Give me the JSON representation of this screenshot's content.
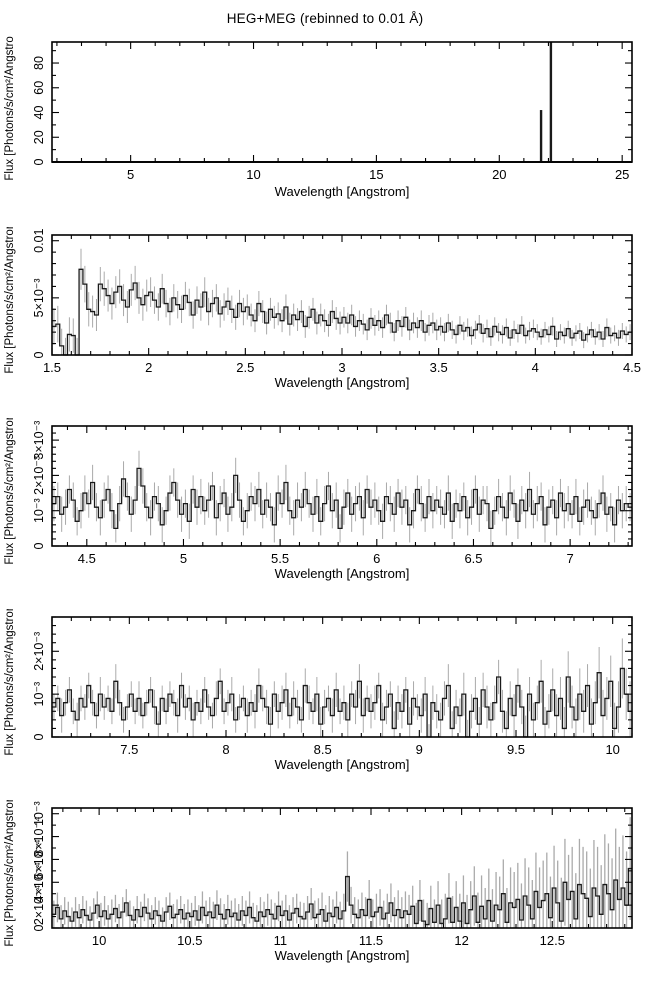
{
  "title": "HEG+MEG (rebinned to 0.01 Å)",
  "colors": {
    "background": "#ffffff",
    "frame": "#000000",
    "histogram": "#1a1a1a",
    "error_bars": "#aaaaaa",
    "text": "#000000"
  },
  "chart_data": [
    {
      "type": "histogram",
      "panel": "overview",
      "xlabel": "Wavelength [Angstrom]",
      "ylabel": "Flux [Photons/s/cm²/Angstrom]",
      "xlim": [
        1.8,
        25.4
      ],
      "ylim": [
        0,
        97
      ],
      "xticks": {
        "major": [
          5,
          10,
          15,
          20,
          25
        ],
        "labels": [
          "5",
          "10",
          "15",
          "20",
          "25"
        ],
        "minor_step": 1
      },
      "yticks": {
        "major": [
          0,
          20,
          40,
          60,
          80
        ],
        "labels": [
          "0",
          "20",
          "40",
          "60",
          "80"
        ],
        "minor_step": 10
      },
      "baseline_value": 0,
      "spikes": [
        {
          "x": 21.7,
          "y": 42
        },
        {
          "x": 22.1,
          "y": 97
        }
      ]
    },
    {
      "type": "histogram",
      "panel": "zoom-1",
      "xlabel": "Wavelength [Angstrom]",
      "ylabel": "Flux [Photons/s/cm²/Angstrom]",
      "xlim": [
        1.5,
        4.5
      ],
      "ylim": [
        0,
        0.0105
      ],
      "xticks": {
        "major": [
          1.5,
          2,
          2.5,
          3,
          3.5,
          4,
          4.5
        ],
        "labels": [
          "1.5",
          "2",
          "2.5",
          "3",
          "3.5",
          "4",
          "4.5"
        ],
        "minor_step": 0.1
      },
      "yticks": {
        "major": [
          0,
          0.005,
          0.01
        ],
        "labels": [
          "0",
          "5×10⁻³",
          "0.01"
        ],
        "minor_step": 0.001
      },
      "y_unit": 0.0001,
      "x0": 1.5,
      "dx": 0.02,
      "values": [
        25,
        27,
        8,
        0,
        18,
        17,
        0,
        75,
        62,
        40,
        38,
        35,
        62,
        58,
        52,
        45,
        55,
        60,
        48,
        42,
        57,
        63,
        50,
        44,
        52,
        55,
        48,
        42,
        58,
        45,
        38,
        50,
        44,
        40,
        52,
        46,
        35,
        48,
        42,
        55,
        38,
        45,
        50,
        36,
        42,
        47,
        40,
        33,
        45,
        38,
        42,
        35,
        30,
        45,
        38,
        28,
        40,
        33,
        36,
        30,
        42,
        27,
        35,
        31,
        38,
        25,
        33,
        40,
        28,
        35,
        30,
        26,
        38,
        32,
        28,
        33,
        28,
        35,
        25,
        30,
        27,
        22,
        32,
        26,
        30,
        24,
        35,
        28,
        20,
        30,
        25,
        33,
        22,
        28,
        24,
        30,
        20,
        26,
        28,
        22,
        25,
        20,
        28,
        22,
        18,
        26,
        21,
        24,
        17,
        22,
        27,
        19,
        23,
        16,
        25,
        20,
        18,
        24,
        15,
        22,
        19,
        26,
        17,
        21,
        23,
        20,
        16,
        22,
        18,
        25,
        14,
        20,
        17,
        23,
        15,
        19,
        21,
        13,
        18,
        22,
        16,
        20,
        14,
        24,
        17,
        19,
        15,
        21,
        18,
        20
      ],
      "errors": [
        16,
        16,
        15,
        15,
        15,
        15,
        15,
        18,
        16,
        15,
        14,
        14,
        15,
        15,
        14,
        14,
        14,
        15,
        14,
        14,
        14,
        15,
        14,
        14,
        14,
        13,
        12,
        12,
        13,
        12,
        12,
        12,
        12,
        12,
        12,
        12,
        12,
        12,
        12,
        13,
        12,
        12,
        12,
        12,
        12,
        12,
        12,
        11,
        12,
        12,
        11,
        10,
        10,
        11,
        10,
        10,
        10,
        10,
        10,
        10,
        11,
        10,
        10,
        10,
        10,
        10,
        10,
        10,
        10,
        10,
        10,
        10,
        10,
        10,
        10,
        9,
        9,
        9,
        9,
        9,
        9,
        9,
        9,
        9,
        9,
        9,
        9,
        9,
        8,
        9,
        9,
        9,
        9,
        9,
        9,
        9,
        8,
        9,
        9,
        9,
        8,
        8,
        8,
        8,
        8,
        8,
        8,
        8,
        8,
        8,
        8,
        8,
        8,
        8,
        8,
        8,
        8,
        8,
        7,
        8,
        8,
        8,
        7,
        8,
        8,
        7,
        7,
        7,
        7,
        8,
        7,
        7,
        7,
        7,
        7,
        7,
        7,
        7,
        7,
        7,
        7,
        7,
        7,
        8,
        7,
        7,
        7,
        7,
        7,
        7
      ]
    },
    {
      "type": "histogram",
      "panel": "zoom-2",
      "xlabel": "Wavelength [Angstrom]",
      "ylabel": "Flux [Photons/s/cm²/Angstrom]",
      "xlim": [
        4.32,
        7.32
      ],
      "ylim": [
        0,
        0.0034
      ],
      "xticks": {
        "major": [
          4.5,
          5,
          5.5,
          6,
          6.5,
          7
        ],
        "labels": [
          "4.5",
          "5",
          "5.5",
          "6",
          "6.5",
          "7"
        ],
        "minor_step": 0.1
      },
      "yticks": {
        "major": [
          0,
          0.001,
          0.002,
          0.003
        ],
        "labels": [
          "0",
          "10⁻³",
          "2×10⁻³",
          "3×10⁻³"
        ],
        "minor_step": 0.0002
      },
      "y_unit": 0.0001,
      "x0": 4.32,
      "dx": 0.02,
      "values": [
        12,
        14,
        9,
        11,
        16,
        13,
        7,
        10,
        15,
        12,
        18,
        11,
        8,
        13,
        16,
        10,
        5,
        12,
        19,
        14,
        9,
        13,
        22,
        17,
        11,
        8,
        14,
        12,
        6,
        10,
        15,
        18,
        13,
        9,
        12,
        7,
        16,
        11,
        14,
        10,
        13,
        17,
        8,
        12,
        15,
        9,
        11,
        20,
        13,
        7,
        10,
        14,
        12,
        16,
        9,
        13,
        11,
        6,
        15,
        12,
        18,
        10,
        8,
        13,
        11,
        16,
        12,
        9,
        14,
        7,
        12,
        17,
        10,
        13,
        5,
        11,
        15,
        9,
        12,
        14,
        8,
        16,
        11,
        13,
        10,
        7,
        14,
        12,
        9,
        15,
        11,
        13,
        6,
        10,
        16,
        12,
        8,
        14,
        10,
        13,
        11,
        9,
        15,
        7,
        12,
        10,
        14,
        8,
        11,
        16,
        9,
        13,
        12,
        5,
        10,
        14,
        11,
        8,
        15,
        12,
        7,
        13,
        10,
        16,
        9,
        12,
        14,
        6,
        11,
        13,
        8,
        15,
        10,
        12,
        9,
        14,
        7,
        11,
        13,
        10,
        8,
        12,
        15,
        9,
        11,
        6,
        13,
        10,
        12,
        11
      ],
      "errors": [
        5,
        4,
        5,
        5,
        4,
        5,
        4,
        5,
        5,
        4,
        5,
        4,
        5,
        5,
        4,
        5,
        4,
        5,
        5,
        4,
        5,
        4,
        5,
        5,
        4,
        5,
        4,
        5,
        5,
        4,
        5,
        4,
        5,
        5,
        4,
        5,
        4,
        5,
        5,
        4,
        5,
        4,
        5,
        5,
        4,
        5,
        4,
        5,
        5,
        4,
        5,
        4,
        5,
        5,
        4,
        5,
        4,
        5,
        5,
        4,
        5,
        4,
        5,
        5,
        4,
        5,
        4,
        5,
        5,
        4,
        5,
        4,
        5,
        5,
        4,
        5,
        4,
        5,
        5,
        4,
        5,
        4,
        5,
        5,
        4,
        5,
        4,
        5,
        5,
        4,
        5,
        4,
        5,
        5,
        4,
        5,
        4,
        5,
        5,
        4,
        5,
        4,
        5,
        5,
        4,
        5,
        4,
        5,
        5,
        4,
        5,
        4,
        5,
        5,
        4,
        5,
        4,
        5,
        5,
        4,
        5,
        4,
        5,
        5,
        4,
        5,
        4,
        5,
        5,
        4,
        5,
        4,
        5,
        5,
        4,
        5,
        4,
        5,
        5,
        4,
        5,
        4,
        5,
        5,
        4,
        5,
        4,
        5,
        5,
        4
      ]
    },
    {
      "type": "histogram",
      "panel": "zoom-3",
      "xlabel": "Wavelength [Angstrom]",
      "ylabel": "Flux [Photons/s/cm²/Angstrom]",
      "xlim": [
        7.1,
        10.1
      ],
      "ylim": [
        0,
        0.0028
      ],
      "xticks": {
        "major": [
          7.5,
          8,
          8.5,
          9,
          9.5,
          10
        ],
        "labels": [
          "7.5",
          "8",
          "8.5",
          "9",
          "9.5",
          "10"
        ],
        "minor_step": 0.1
      },
      "yticks": {
        "major": [
          0,
          0.001,
          0.002
        ],
        "labels": [
          "0",
          "10⁻³",
          "2×10⁻³"
        ],
        "minor_step": 0.0002
      },
      "y_unit": 0.0001,
      "x0": 7.1,
      "dx": 0.02,
      "values": [
        7,
        9,
        5,
        8,
        11,
        6,
        4,
        9,
        7,
        12,
        8,
        5,
        10,
        7,
        9,
        6,
        13,
        8,
        4,
        7,
        10,
        6,
        9,
        5,
        8,
        11,
        7,
        3,
        9,
        6,
        10,
        8,
        5,
        12,
        7,
        9,
        4,
        8,
        6,
        11,
        7,
        5,
        9,
        13,
        6,
        8,
        10,
        4,
        7,
        9,
        5,
        8,
        6,
        12,
        9,
        7,
        3,
        10,
        6,
        8,
        11,
        5,
        9,
        7,
        4,
        12,
        8,
        6,
        10,
        3,
        7,
        9,
        5,
        11,
        6,
        8,
        4,
        10,
        7,
        13,
        5,
        9,
        6,
        8,
        12,
        4,
        7,
        10,
        2,
        8,
        6,
        11,
        3,
        9,
        7,
        5,
        10,
        0,
        8,
        6,
        4,
        9,
        12,
        2,
        7,
        5,
        10,
        0,
        6,
        9,
        3,
        11,
        7,
        4,
        8,
        14,
        6,
        2,
        9,
        5,
        12,
        7,
        0,
        10,
        4,
        8,
        13,
        3,
        6,
        11,
        5,
        9,
        2,
        14,
        7,
        4,
        10,
        6,
        12,
        3,
        8,
        15,
        5,
        9,
        13,
        2,
        7,
        16,
        10,
        6
      ],
      "errors": [
        3,
        3,
        4,
        3,
        3,
        3,
        4,
        3,
        3,
        3,
        3,
        3,
        4,
        3,
        3,
        3,
        4,
        3,
        3,
        3,
        3,
        3,
        4,
        3,
        3,
        3,
        4,
        3,
        3,
        3,
        3,
        3,
        4,
        3,
        3,
        3,
        4,
        3,
        3,
        3,
        3,
        3,
        4,
        3,
        3,
        3,
        4,
        3,
        3,
        3,
        4,
        3,
        4,
        4,
        3,
        4,
        4,
        3,
        4,
        4,
        4,
        3,
        4,
        4,
        3,
        4,
        4,
        3,
        4,
        4,
        4,
        3,
        4,
        4,
        3,
        4,
        4,
        3,
        4,
        4,
        4,
        3,
        4,
        4,
        3,
        4,
        4,
        3,
        4,
        4,
        4,
        3,
        4,
        4,
        3,
        4,
        4,
        3,
        4,
        4,
        4,
        4,
        5,
        4,
        4,
        4,
        5,
        4,
        4,
        5,
        4,
        4,
        5,
        4,
        4,
        4,
        5,
        4,
        4,
        5,
        4,
        4,
        5,
        4,
        4,
        4,
        5,
        4,
        4,
        5,
        5,
        5,
        5,
        6,
        5,
        5,
        6,
        5,
        5,
        6,
        5,
        6,
        6,
        5,
        6,
        6,
        6,
        7,
        6,
        7
      ]
    },
    {
      "type": "histogram",
      "panel": "zoom-4",
      "xlabel": "Wavelength [Angstrom]",
      "ylabel": "Flux [Photons/s/cm²/Angstrom]",
      "xlim": [
        9.74,
        12.94
      ],
      "ylim": [
        0,
        0.00105
      ],
      "xticks": {
        "major": [
          10,
          10.5,
          11,
          11.5,
          12,
          12.5
        ],
        "labels": [
          "10",
          "10.5",
          "11",
          "11.5",
          "12",
          "12.5"
        ],
        "minor_step": 0.1
      },
      "yticks": {
        "major": [
          0,
          0.0002,
          0.0004,
          0.0006,
          0.0008,
          0.001
        ],
        "labels": [
          "0",
          "2×10⁻⁴",
          "4×10⁻⁴",
          "6×10⁻⁴",
          "8×10⁻⁴",
          "10⁻³"
        ],
        "minor_step": 0.0001
      },
      "y_unit": 1e-05,
      "x0": 9.74,
      "dx": 0.02,
      "values": [
        12,
        18,
        8,
        15,
        10,
        6,
        14,
        9,
        16,
        11,
        7,
        13,
        20,
        10,
        15,
        8,
        12,
        17,
        9,
        14,
        22,
        11,
        7,
        16,
        10,
        18,
        13,
        8,
        15,
        11,
        6,
        14,
        19,
        9,
        12,
        16,
        8,
        13,
        10,
        15,
        7,
        18,
        11,
        14,
        9,
        20,
        12,
        8,
        16,
        10,
        13,
        7,
        15,
        11,
        18,
        9,
        6,
        14,
        10,
        16,
        12,
        8,
        19,
        11,
        15,
        7,
        13,
        17,
        10,
        8,
        14,
        21,
        9,
        12,
        16,
        6,
        13,
        10,
        18,
        8,
        15,
        45,
        20,
        12,
        9,
        16,
        11,
        25,
        10,
        14,
        18,
        8,
        13,
        22,
        11,
        16,
        9,
        15,
        12,
        19,
        4,
        24,
        6,
        3,
        17,
        5,
        20,
        4,
        8,
        26,
        5,
        18,
        6,
        22,
        4,
        16,
        28,
        5,
        19,
        8,
        24,
        6,
        20,
        16,
        30,
        5,
        22,
        18,
        25,
        7,
        28,
        20,
        8,
        32,
        18,
        24,
        30,
        9,
        35,
        22,
        6,
        40,
        25,
        32,
        8,
        38,
        30,
        26,
        10,
        35,
        28,
        12,
        38,
        30,
        16,
        42,
        25,
        35,
        20,
        52
      ],
      "errors": [
        12,
        13,
        12,
        12,
        13,
        12,
        13,
        12,
        12,
        13,
        12,
        13,
        12,
        12,
        13,
        12,
        13,
        12,
        12,
        13,
        12,
        13,
        12,
        12,
        13,
        12,
        13,
        12,
        12,
        13,
        12,
        13,
        12,
        12,
        13,
        12,
        13,
        12,
        12,
        13,
        13,
        14,
        13,
        13,
        14,
        13,
        14,
        13,
        13,
        14,
        13,
        14,
        13,
        13,
        14,
        13,
        14,
        13,
        13,
        14,
        13,
        14,
        13,
        13,
        14,
        13,
        14,
        13,
        13,
        14,
        14,
        14,
        15,
        14,
        15,
        14,
        15,
        15,
        14,
        15,
        15,
        22,
        16,
        15,
        16,
        15,
        16,
        17,
        15,
        16,
        16,
        16,
        17,
        17,
        16,
        17,
        18,
        17,
        17,
        18,
        18,
        18,
        19,
        19,
        20,
        20,
        21,
        21,
        22,
        22,
        23,
        23,
        24,
        24,
        25,
        25,
        26,
        26,
        27,
        27,
        28,
        28,
        29,
        29,
        30,
        30,
        31,
        31,
        32,
        32,
        33,
        33,
        34,
        34,
        35,
        35,
        36,
        36,
        37,
        37,
        38,
        38,
        39,
        39,
        40,
        40,
        41,
        41,
        42,
        42,
        43,
        43,
        44,
        44,
        45,
        45,
        46,
        46,
        47,
        45
      ]
    }
  ]
}
